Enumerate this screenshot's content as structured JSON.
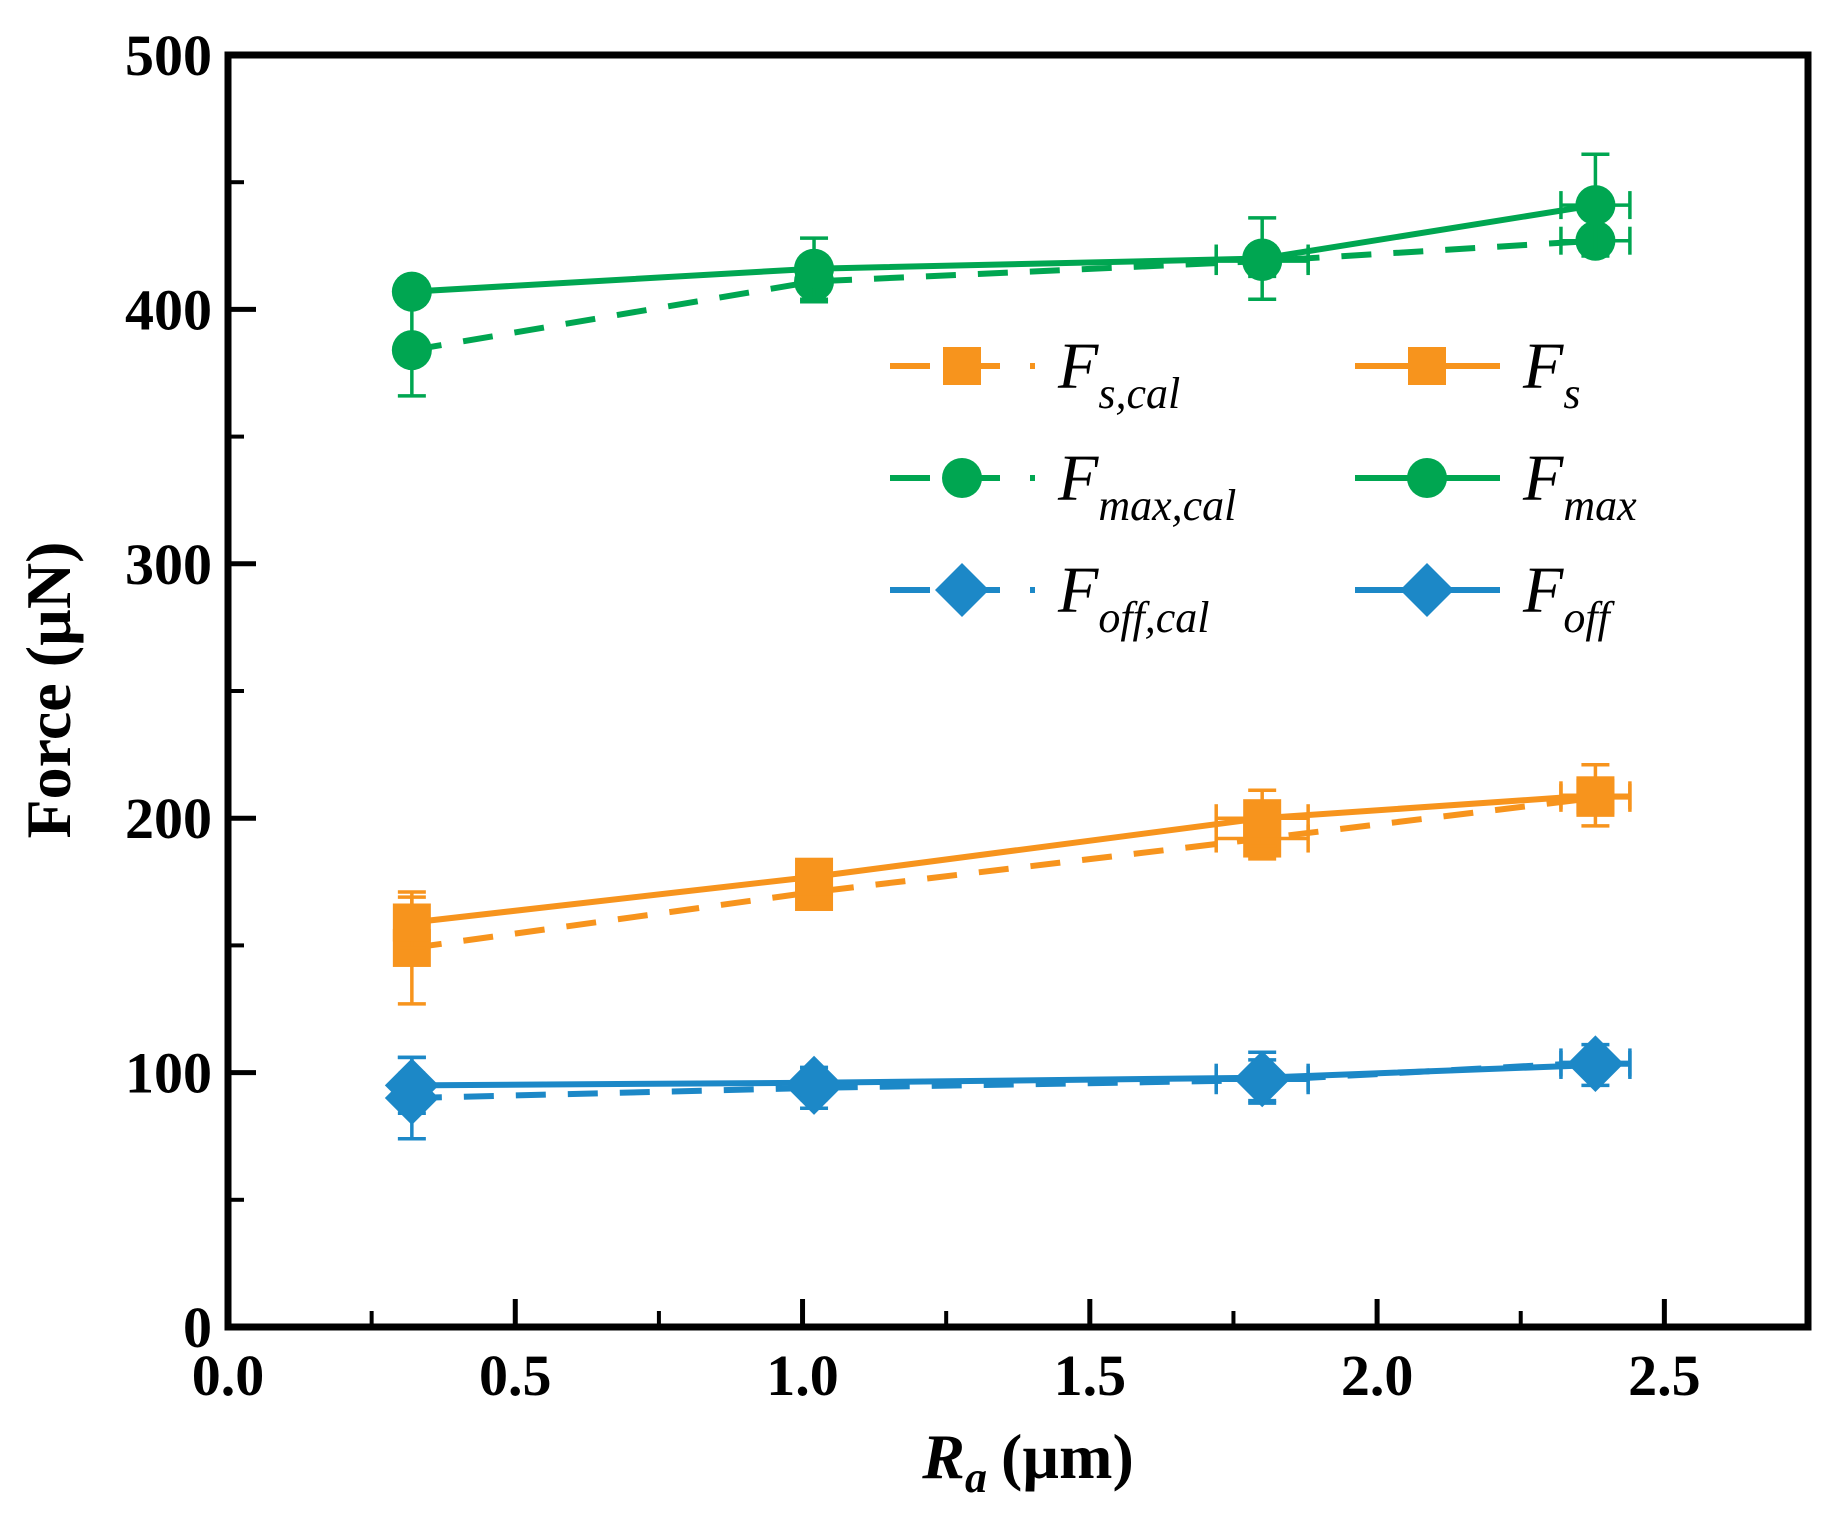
{
  "chart_data": {
    "type": "line",
    "title": "",
    "xlabel": {
      "main": "R",
      "sub": "a",
      "unit": "(µm)"
    },
    "ylabel": "Force (µN)",
    "xlim": [
      0.0,
      2.75
    ],
    "ylim": [
      0,
      500
    ],
    "xticks": [
      0.0,
      0.5,
      1.0,
      1.5,
      2.0,
      2.5
    ],
    "xtick_labels": [
      "0.0",
      "0.5",
      "1.0",
      "1.5",
      "2.0",
      "2.5"
    ],
    "yticks": [
      0,
      100,
      200,
      300,
      400,
      500
    ],
    "ytick_labels": [
      "0",
      "100",
      "200",
      "300",
      "400",
      "500"
    ],
    "legend_position": "upper-right",
    "series": [
      {
        "name": "F_s,cal",
        "label_main": "F",
        "label_sub": "s,cal",
        "color": "#F7941D",
        "style": "dashed",
        "marker": "square",
        "x": [
          0.32,
          1.02,
          1.8,
          2.38
        ],
        "y": [
          149,
          171,
          192,
          208
        ],
        "y_err": [
          22,
          6,
          8,
          4
        ],
        "x_err": [
          0.02,
          0.02,
          0.08,
          0.06
        ]
      },
      {
        "name": "F_s",
        "label_main": "F",
        "label_sub": "s",
        "color": "#F7941D",
        "style": "solid",
        "marker": "square",
        "x": [
          0.32,
          1.02,
          1.8,
          2.38
        ],
        "y": [
          159,
          177,
          200,
          209
        ],
        "y_err": [
          10,
          6,
          11,
          12
        ],
        "x_err": [
          0.02,
          0.02,
          0.08,
          0.06
        ]
      },
      {
        "name": "F_max,cal",
        "label_main": "F",
        "label_sub": "max,cal",
        "color": "#00A651",
        "style": "dashed",
        "marker": "circle",
        "x": [
          0.32,
          1.02,
          1.8,
          2.38
        ],
        "y": [
          384,
          411,
          419,
          427
        ],
        "y_err": [
          18,
          8,
          6,
          4
        ],
        "x_err": [
          0.02,
          0.02,
          0.08,
          0.06
        ]
      },
      {
        "name": "F_max",
        "label_main": "F",
        "label_sub": "max",
        "color": "#00A651",
        "style": "solid",
        "marker": "circle",
        "x": [
          0.32,
          1.02,
          1.8,
          2.38
        ],
        "y": [
          407,
          416,
          420,
          441
        ],
        "y_err": [
          5,
          12,
          16,
          20
        ],
        "x_err": [
          0.02,
          0.02,
          0.08,
          0.06
        ]
      },
      {
        "name": "F_off,cal",
        "label_main": "F",
        "label_sub": "off,cal",
        "color": "#1C88C7",
        "style": "dashed",
        "marker": "diamond",
        "x": [
          0.32,
          1.02,
          1.8,
          2.38
        ],
        "y": [
          90,
          94,
          97,
          104
        ],
        "y_err": [
          16,
          8,
          8,
          4
        ],
        "x_err": [
          0.02,
          0.02,
          0.08,
          0.06
        ]
      },
      {
        "name": "F_off",
        "label_main": "F",
        "label_sub": "off",
        "color": "#1C88C7",
        "style": "solid",
        "marker": "diamond",
        "x": [
          0.32,
          1.02,
          1.8,
          2.38
        ],
        "y": [
          95,
          96,
          98,
          103
        ],
        "y_err": [
          11,
          6,
          10,
          8
        ],
        "x_err": [
          0.02,
          0.02,
          0.08,
          0.06
        ]
      }
    ]
  }
}
